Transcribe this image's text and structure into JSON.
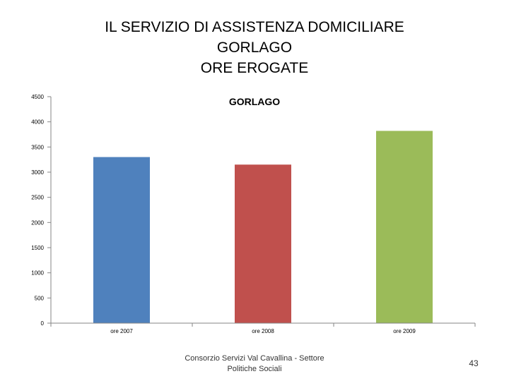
{
  "slide": {
    "title_lines": [
      "IL SERVIZIO DI ASSISTENZA DOMICILIARE",
      "GORLAGO",
      "ORE EROGATE"
    ],
    "footer": "Consorzio Servizi Val Cavallina - Settore Politiche Sociali",
    "page_number": "43"
  },
  "chart_data": {
    "type": "bar",
    "title": "GORLAGO",
    "categories": [
      "ore 2007",
      "ore 2008",
      "ore 2009"
    ],
    "values": [
      3300,
      3150,
      3820
    ],
    "colors": [
      "#4f81bd",
      "#c0504d",
      "#9bbb59"
    ],
    "ylim": [
      0,
      4500
    ],
    "yticks": [
      "0",
      "500",
      "1000",
      "1500",
      "2000",
      "2500",
      "3000",
      "3500",
      "4000",
      "4500"
    ],
    "grid": false,
    "legend": "none"
  }
}
